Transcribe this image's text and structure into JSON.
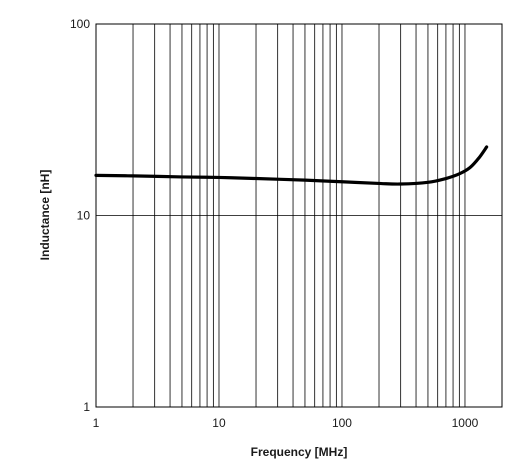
{
  "chart_data": {
    "type": "line",
    "xlabel": "Frequency [MHz]",
    "ylabel": "Inductance [nH]",
    "x_scale": "log",
    "y_scale": "log",
    "xlim": [
      1,
      2000
    ],
    "ylim": [
      1,
      100
    ],
    "x_ticks": [
      {
        "value": 1,
        "label": "1"
      },
      {
        "value": 10,
        "label": "10"
      },
      {
        "value": 100,
        "label": "100"
      },
      {
        "value": 1000,
        "label": "1000"
      }
    ],
    "y_ticks": [
      {
        "value": 1,
        "label": "1"
      },
      {
        "value": 10,
        "label": "10"
      },
      {
        "value": 100,
        "label": "100"
      }
    ],
    "grid": true,
    "line_color": "#000000",
    "series": [
      {
        "x": [
          1,
          2,
          5,
          10,
          20,
          50,
          100,
          200,
          300,
          500,
          700,
          900,
          1100,
          1300,
          1500
        ],
        "y": [
          16.2,
          16.1,
          15.9,
          15.8,
          15.6,
          15.3,
          15.0,
          14.7,
          14.6,
          14.9,
          15.6,
          16.5,
          17.8,
          20.0,
          22.8
        ]
      }
    ]
  }
}
